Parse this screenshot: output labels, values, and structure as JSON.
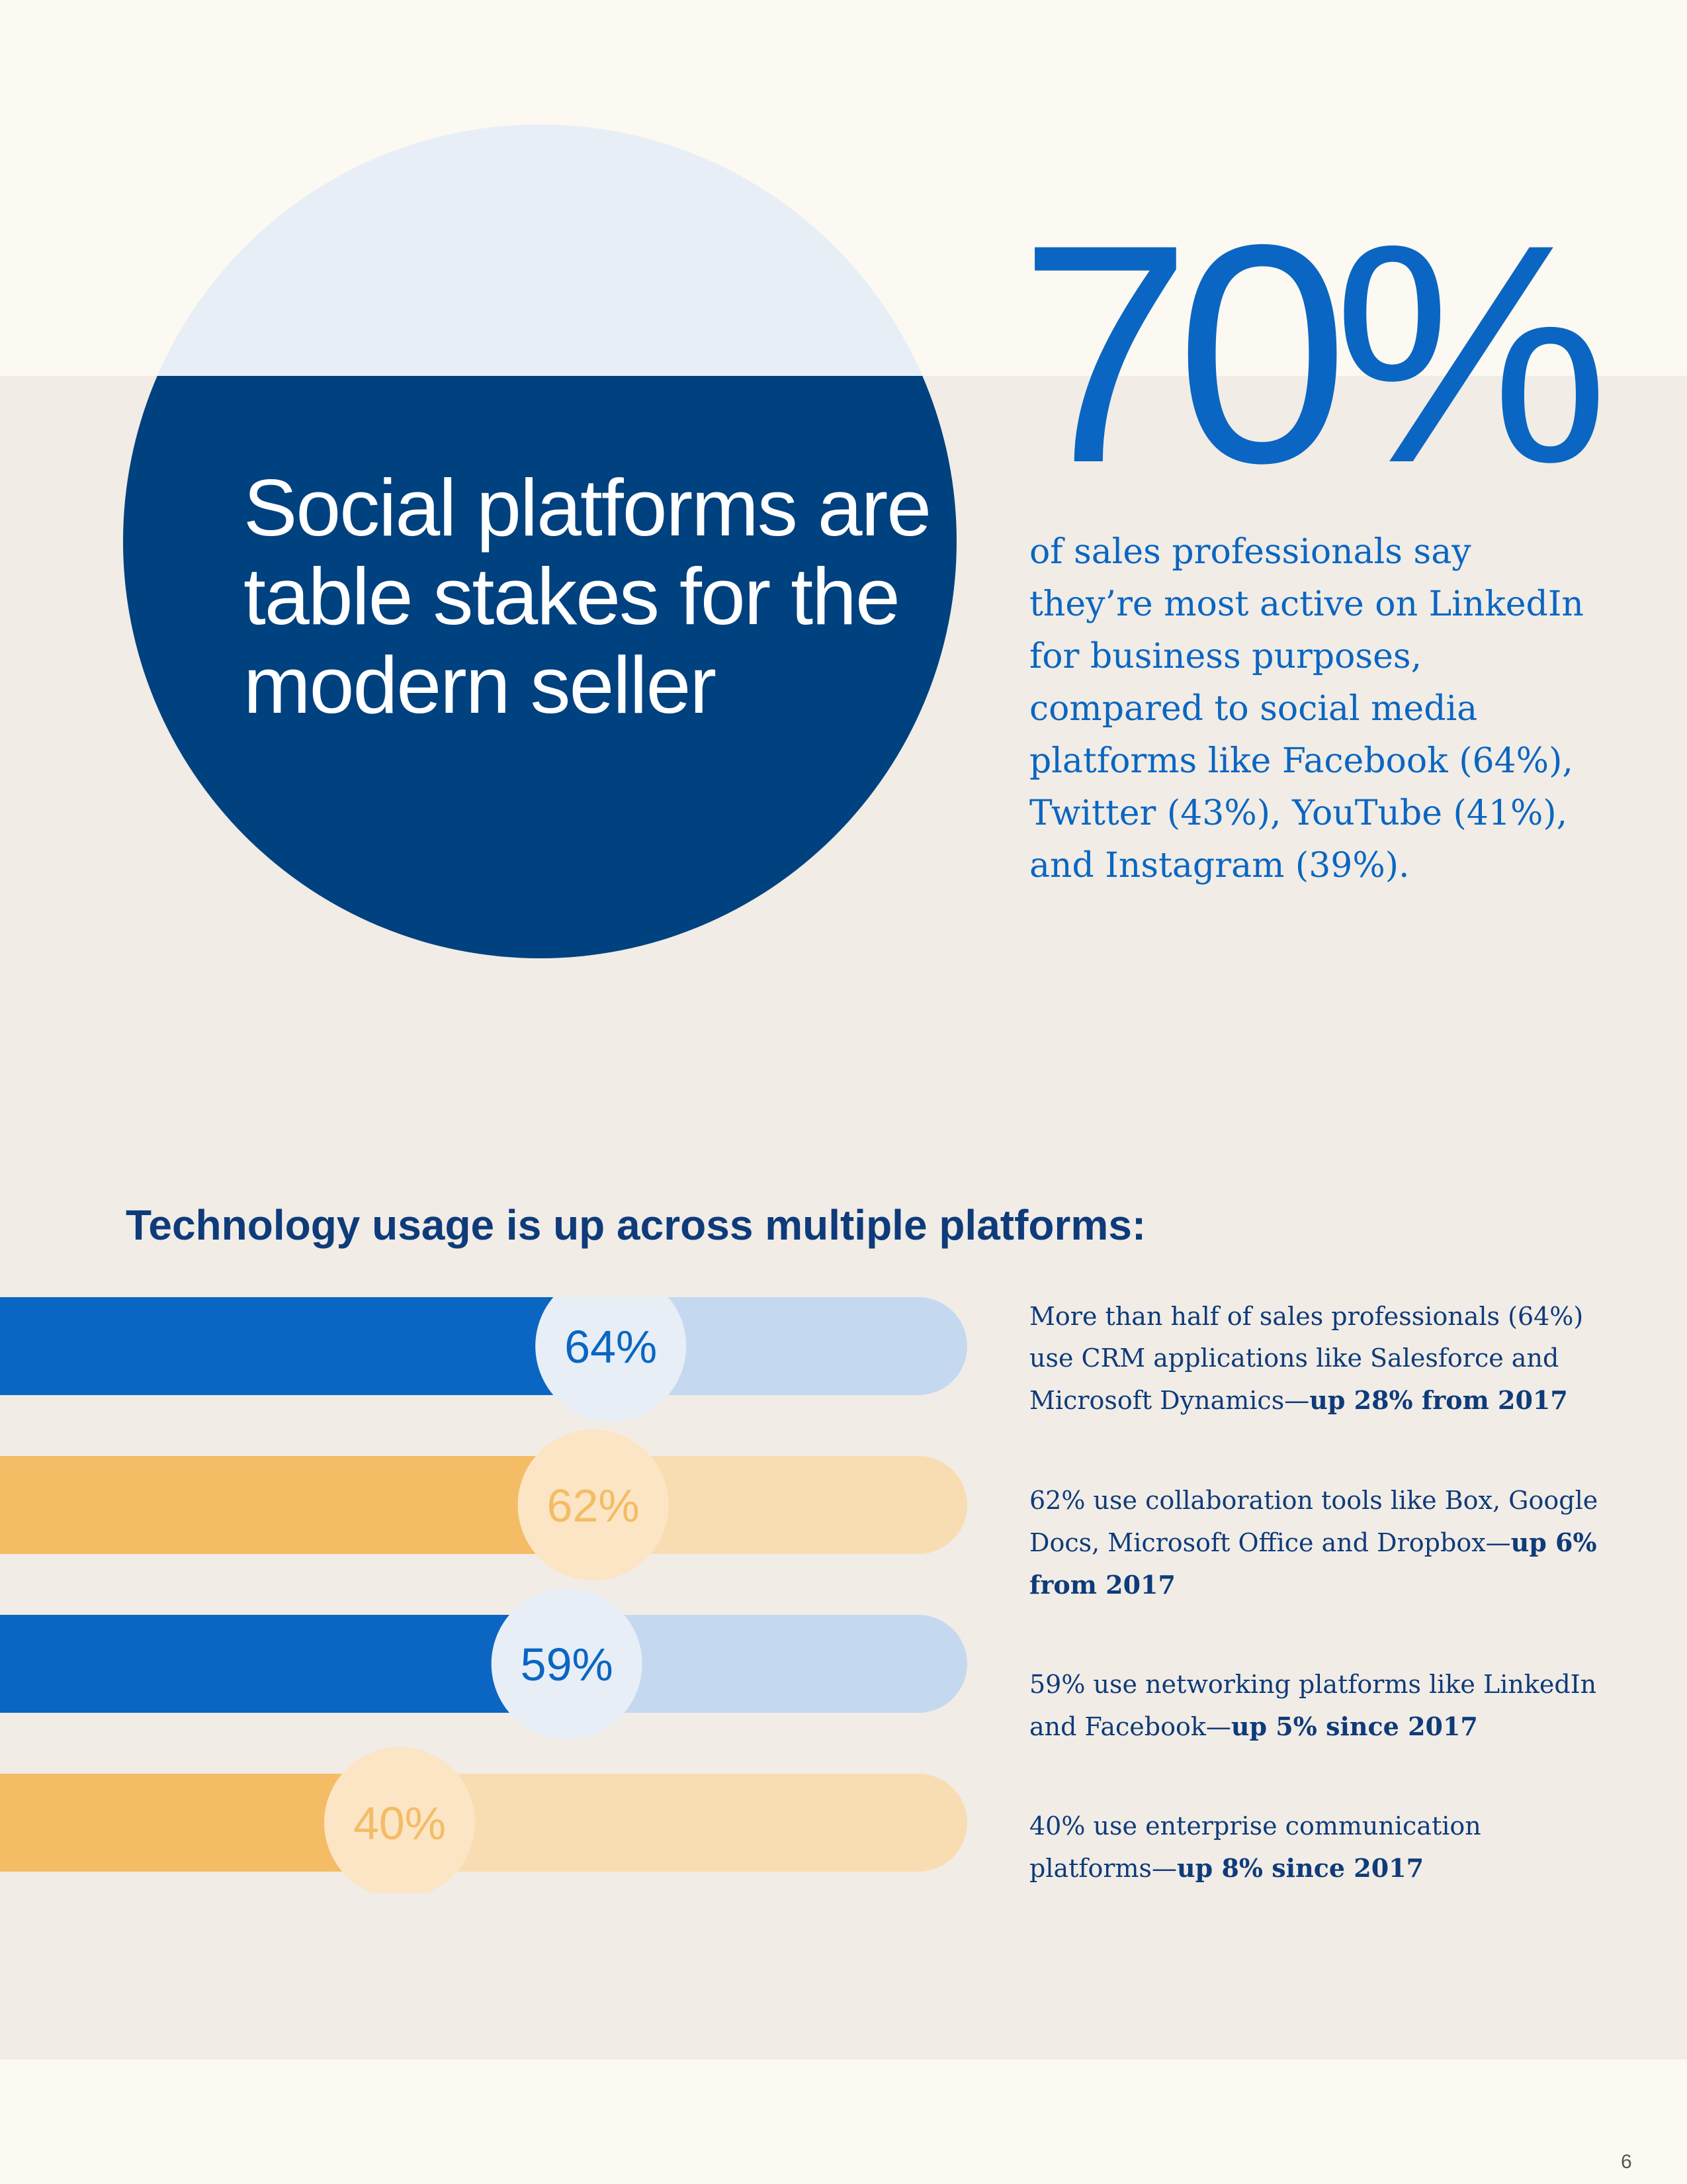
{
  "hero": {
    "headline": "Social platforms are table stakes for the modern seller",
    "stat_value": "70%",
    "stat_description": "of sales professionals say they’re most active on LinkedIn for business purposes, compared to social media platforms like Facebook (64%), Twitter (43%), YouTube (41%), and Instagram (39%)."
  },
  "colors": {
    "blue_dark": "#0a66c2",
    "blue_light": "#c4d9ef",
    "orange_dark": "#f4bc65",
    "orange_light": "#f9ddb2",
    "navy": "#00417f",
    "circle_top": "#e7eef6"
  },
  "chart_data": {
    "type": "bar",
    "title": "Technology usage is up across multiple platforms:",
    "orientation": "horizontal",
    "xlim": [
      0,
      100
    ],
    "categories": [
      "CRM applications",
      "Collaboration tools",
      "Networking platforms",
      "Enterprise communication platforms"
    ],
    "values": [
      64,
      62,
      59,
      40
    ],
    "labels": [
      "64%",
      "62%",
      "59%",
      "40%"
    ],
    "colors": [
      "blue",
      "orange",
      "blue",
      "orange"
    ],
    "notes": [
      {
        "text": "More than half of sales professionals (64%) use CRM applications like Salesforce and Microsoft Dynamics—",
        "bold": "up 28% from 2017"
      },
      {
        "text": "62% use collaboration tools like Box, Google Docs, Microsoft Office and Dropbox—",
        "bold": "up 6% from 2017"
      },
      {
        "text": "59% use networking platforms like LinkedIn and Facebook—",
        "bold": "up 5% since 2017"
      },
      {
        "text": "40% use enterprise communication platforms—",
        "bold": "up 8% since 2017"
      }
    ]
  },
  "page_number": "6"
}
